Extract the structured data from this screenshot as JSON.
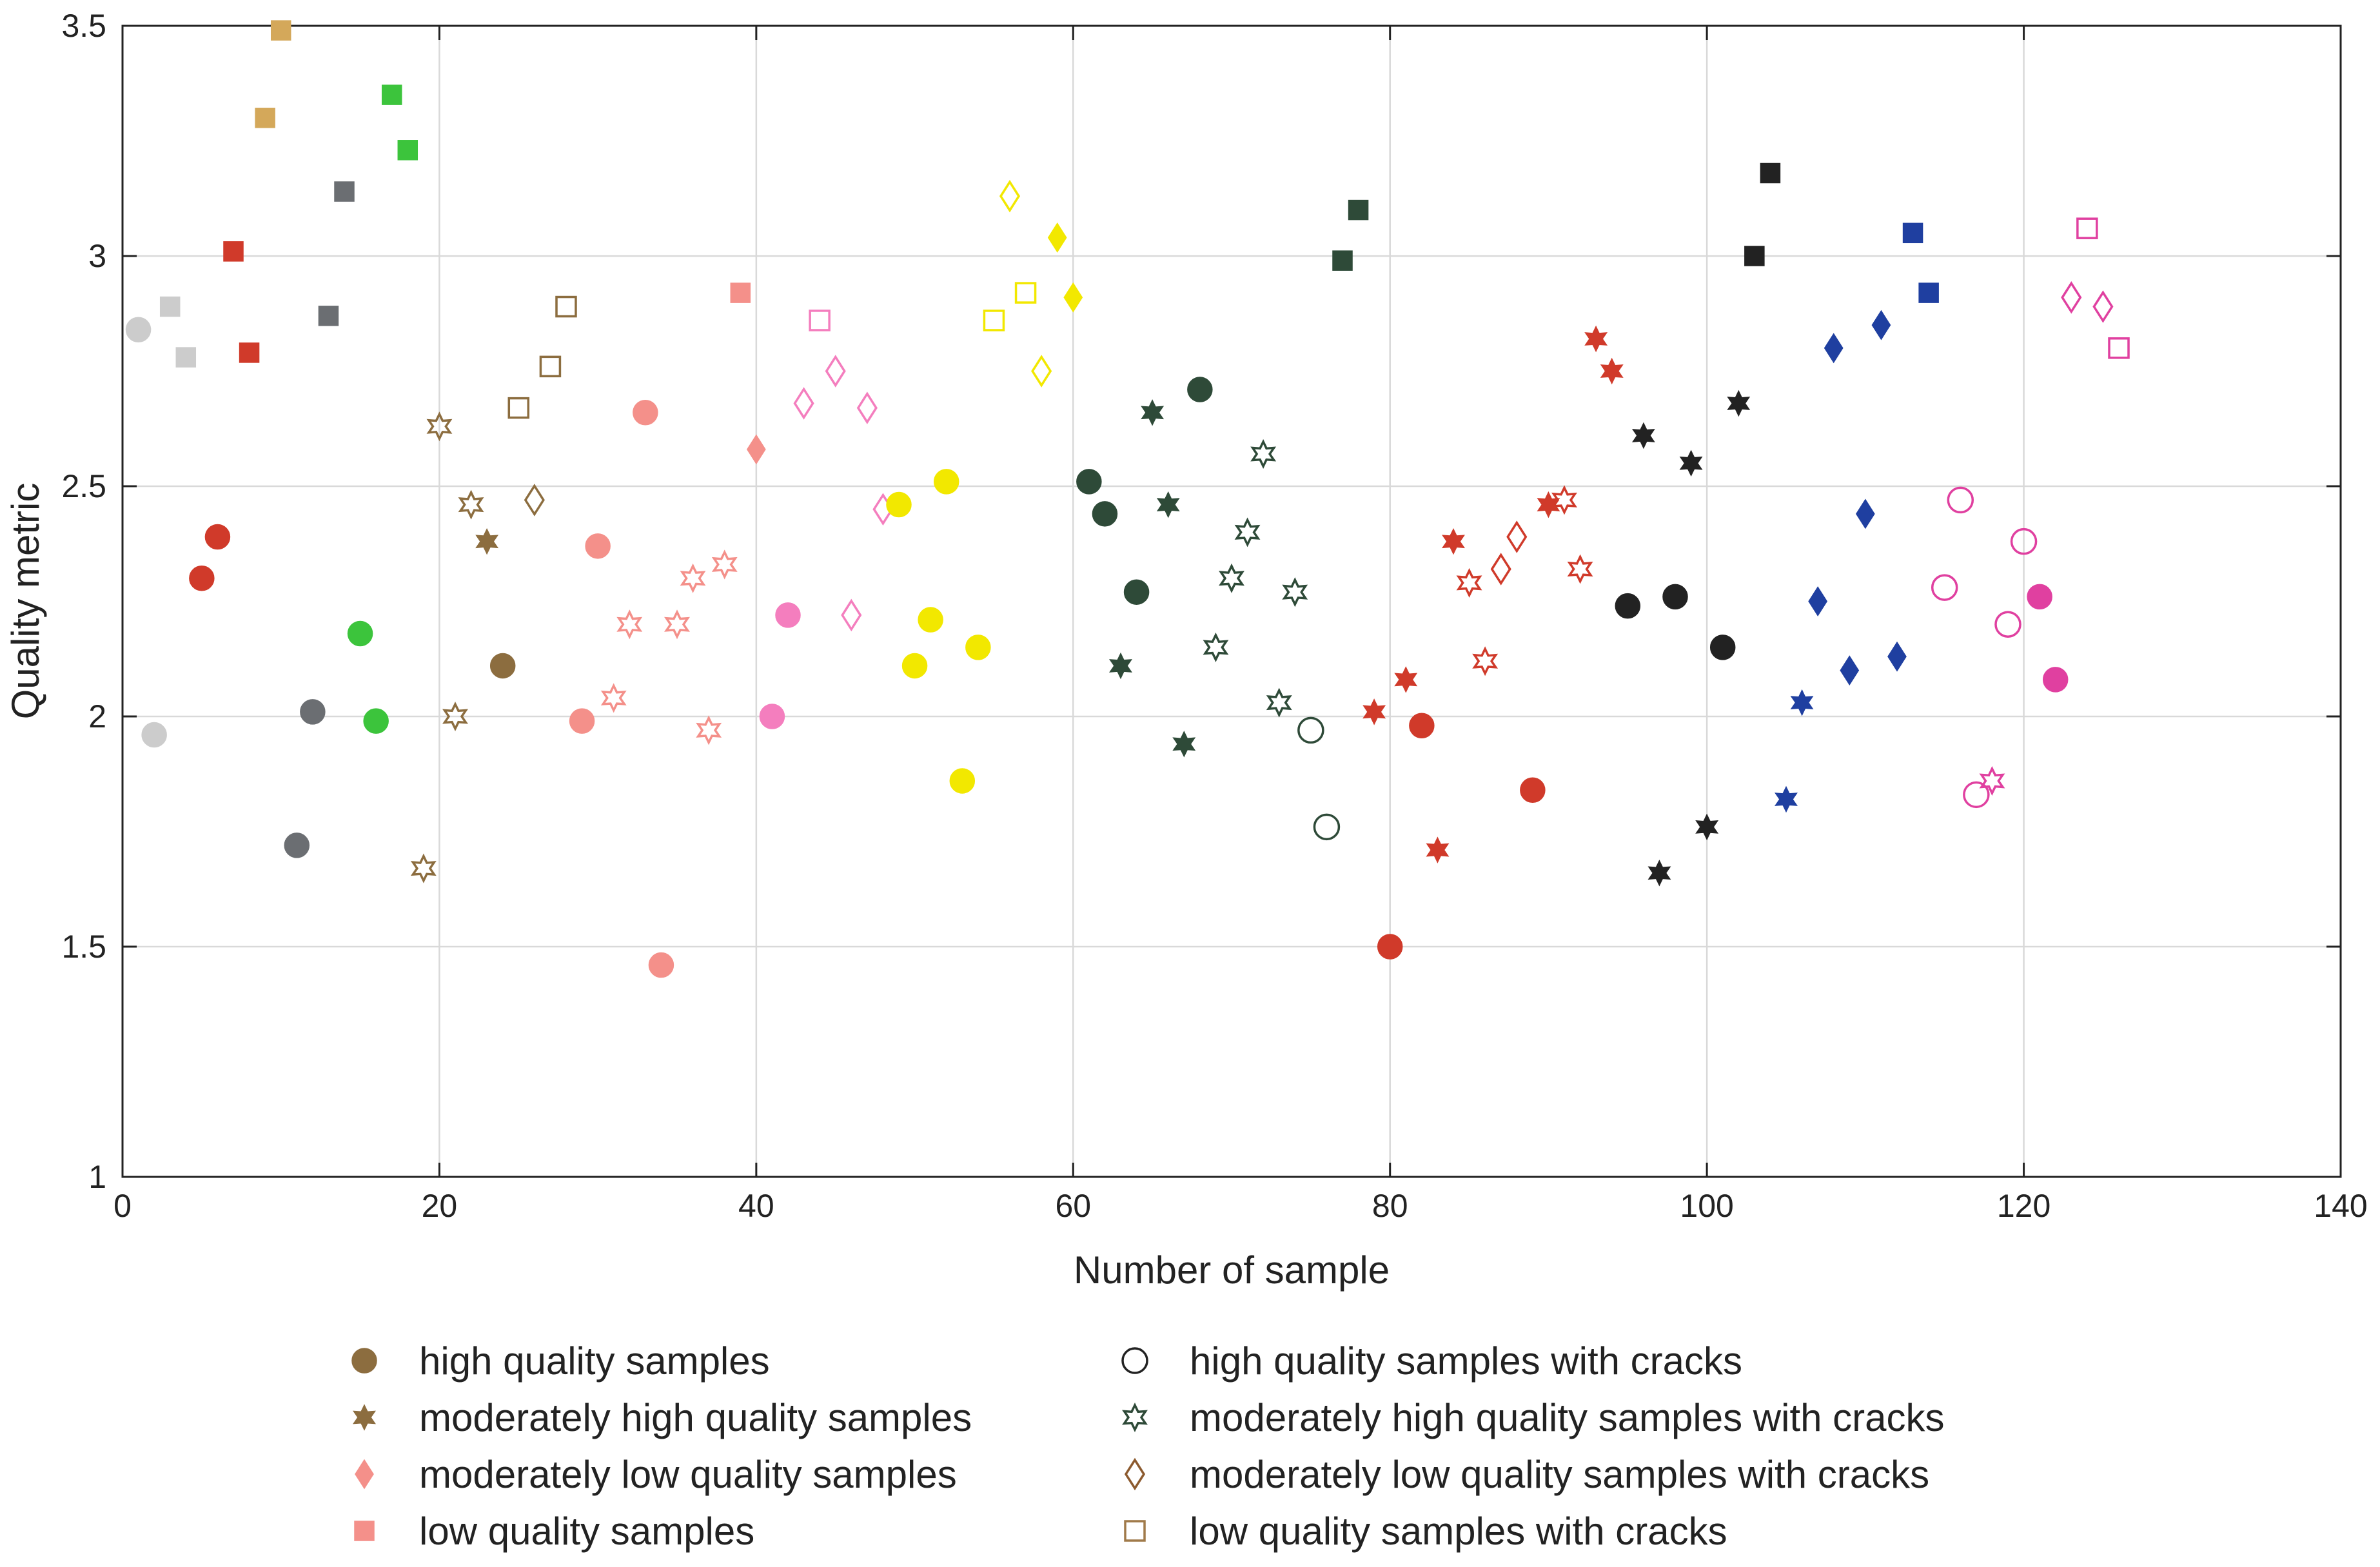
{
  "chart_data": {
    "type": "scatter",
    "title": "",
    "xlabel": "Number of sample",
    "ylabel": "Quality metric",
    "xlim": [
      0,
      140
    ],
    "ylim": [
      1,
      3.5
    ],
    "xticks": [
      "0",
      "20",
      "40",
      "60",
      "80",
      "100",
      "120",
      "140"
    ],
    "yticks": [
      "1",
      "1.5",
      "2",
      "2.5",
      "3",
      "3.5"
    ],
    "grid": true,
    "legend": {
      "placement": "below",
      "entries": [
        {
          "marker": "circle",
          "filled": true,
          "color": "#8C6D3F",
          "label": "high quality samples"
        },
        {
          "marker": "star",
          "filled": true,
          "color": "#8C6D3F",
          "label": "moderately high quality samples"
        },
        {
          "marker": "diamond",
          "filled": true,
          "color": "#F4908A",
          "label": "moderately low quality samples"
        },
        {
          "marker": "square",
          "filled": true,
          "color": "#F4908A",
          "label": "low quality samples"
        },
        {
          "marker": "circle",
          "filled": false,
          "color": "#222222",
          "label": "high quality samples with cracks"
        },
        {
          "marker": "star",
          "filled": false,
          "color": "#2E4A38",
          "label": "moderately high quality samples with cracks"
        },
        {
          "marker": "diamond",
          "filled": false,
          "color": "#8C5A2E",
          "label": "moderately low quality samples with cracks"
        },
        {
          "marker": "square",
          "filled": false,
          "color": "#A07A4A",
          "label": "low quality samples with cracks"
        }
      ]
    },
    "points": [
      {
        "x": 1,
        "y": 2.84,
        "marker": "circle",
        "filled": true,
        "color": "#CCCCCC"
      },
      {
        "x": 2,
        "y": 1.96,
        "marker": "circle",
        "filled": true,
        "color": "#CCCCCC"
      },
      {
        "x": 3,
        "y": 2.89,
        "marker": "square",
        "filled": true,
        "color": "#CCCCCC"
      },
      {
        "x": 4,
        "y": 2.78,
        "marker": "square",
        "filled": true,
        "color": "#CCCCCC"
      },
      {
        "x": 5,
        "y": 2.3,
        "marker": "circle",
        "filled": true,
        "color": "#D03A2A"
      },
      {
        "x": 6,
        "y": 2.39,
        "marker": "circle",
        "filled": true,
        "color": "#D03A2A"
      },
      {
        "x": 7,
        "y": 3.01,
        "marker": "square",
        "filled": true,
        "color": "#D03A2A"
      },
      {
        "x": 8,
        "y": 2.79,
        "marker": "square",
        "filled": true,
        "color": "#D03A2A"
      },
      {
        "x": 9,
        "y": 3.3,
        "marker": "square",
        "filled": true,
        "color": "#D4A85A"
      },
      {
        "x": 10,
        "y": 3.49,
        "marker": "square",
        "filled": true,
        "color": "#D4A85A"
      },
      {
        "x": 11,
        "y": 1.72,
        "marker": "circle",
        "filled": true,
        "color": "#6B6E72"
      },
      {
        "x": 12,
        "y": 2.01,
        "marker": "circle",
        "filled": true,
        "color": "#6B6E72"
      },
      {
        "x": 13,
        "y": 2.87,
        "marker": "square",
        "filled": true,
        "color": "#6B6E72"
      },
      {
        "x": 14,
        "y": 3.14,
        "marker": "square",
        "filled": true,
        "color": "#6B6E72"
      },
      {
        "x": 15,
        "y": 2.18,
        "marker": "circle",
        "filled": true,
        "color": "#3CC43C"
      },
      {
        "x": 16,
        "y": 1.99,
        "marker": "circle",
        "filled": true,
        "color": "#3CC43C"
      },
      {
        "x": 17,
        "y": 3.35,
        "marker": "square",
        "filled": true,
        "color": "#3CC43C"
      },
      {
        "x": 18,
        "y": 3.23,
        "marker": "square",
        "filled": true,
        "color": "#3CC43C"
      },
      {
        "x": 19,
        "y": 1.67,
        "marker": "star",
        "filled": false,
        "color": "#8C6D3F"
      },
      {
        "x": 20,
        "y": 2.63,
        "marker": "star",
        "filled": false,
        "color": "#8C6D3F"
      },
      {
        "x": 21,
        "y": 2.0,
        "marker": "star",
        "filled": false,
        "color": "#8C6D3F"
      },
      {
        "x": 22,
        "y": 2.46,
        "marker": "star",
        "filled": false,
        "color": "#8C6D3F"
      },
      {
        "x": 23,
        "y": 2.38,
        "marker": "star",
        "filled": true,
        "color": "#8C6D3F"
      },
      {
        "x": 24,
        "y": 2.11,
        "marker": "circle",
        "filled": true,
        "color": "#8C6D3F"
      },
      {
        "x": 25,
        "y": 2.67,
        "marker": "square",
        "filled": false,
        "color": "#8C6D3F"
      },
      {
        "x": 26,
        "y": 2.47,
        "marker": "diamond",
        "filled": false,
        "color": "#8C6D3F"
      },
      {
        "x": 27,
        "y": 2.76,
        "marker": "square",
        "filled": false,
        "color": "#8C6D3F"
      },
      {
        "x": 28,
        "y": 2.89,
        "marker": "square",
        "filled": false,
        "color": "#8C6D3F"
      },
      {
        "x": 29,
        "y": 1.99,
        "marker": "circle",
        "filled": true,
        "color": "#F4908A"
      },
      {
        "x": 30,
        "y": 2.37,
        "marker": "circle",
        "filled": true,
        "color": "#F4908A"
      },
      {
        "x": 31,
        "y": 2.04,
        "marker": "star",
        "filled": false,
        "color": "#F4908A"
      },
      {
        "x": 32,
        "y": 2.2,
        "marker": "star",
        "filled": false,
        "color": "#F4908A"
      },
      {
        "x": 33,
        "y": 2.66,
        "marker": "circle",
        "filled": true,
        "color": "#F4908A"
      },
      {
        "x": 34,
        "y": 1.46,
        "marker": "circle",
        "filled": true,
        "color": "#F4908A"
      },
      {
        "x": 35,
        "y": 2.2,
        "marker": "star",
        "filled": false,
        "color": "#F4908A"
      },
      {
        "x": 36,
        "y": 2.3,
        "marker": "star",
        "filled": false,
        "color": "#F4908A"
      },
      {
        "x": 37,
        "y": 1.97,
        "marker": "star",
        "filled": false,
        "color": "#F4908A"
      },
      {
        "x": 38,
        "y": 2.33,
        "marker": "star",
        "filled": false,
        "color": "#F4908A"
      },
      {
        "x": 39,
        "y": 2.92,
        "marker": "square",
        "filled": true,
        "color": "#F4908A"
      },
      {
        "x": 40,
        "y": 2.58,
        "marker": "diamond",
        "filled": true,
        "color": "#F4908A"
      },
      {
        "x": 41,
        "y": 2.0,
        "marker": "circle",
        "filled": true,
        "color": "#F47EBE"
      },
      {
        "x": 42,
        "y": 2.22,
        "marker": "circle",
        "filled": true,
        "color": "#F47EBE"
      },
      {
        "x": 43,
        "y": 2.68,
        "marker": "diamond",
        "filled": false,
        "color": "#F47EBE"
      },
      {
        "x": 44,
        "y": 2.86,
        "marker": "square",
        "filled": false,
        "color": "#F47EBE"
      },
      {
        "x": 45,
        "y": 2.75,
        "marker": "diamond",
        "filled": false,
        "color": "#F47EBE"
      },
      {
        "x": 46,
        "y": 2.22,
        "marker": "diamond",
        "filled": false,
        "color": "#F47EBE"
      },
      {
        "x": 47,
        "y": 2.67,
        "marker": "diamond",
        "filled": false,
        "color": "#F47EBE"
      },
      {
        "x": 48,
        "y": 2.45,
        "marker": "diamond",
        "filled": false,
        "color": "#F47EBE"
      },
      {
        "x": 49,
        "y": 2.46,
        "marker": "circle",
        "filled": true,
        "color": "#F2E800"
      },
      {
        "x": 50,
        "y": 2.11,
        "marker": "circle",
        "filled": true,
        "color": "#F2E800"
      },
      {
        "x": 51,
        "y": 2.21,
        "marker": "circle",
        "filled": true,
        "color": "#F2E800"
      },
      {
        "x": 52,
        "y": 2.51,
        "marker": "circle",
        "filled": true,
        "color": "#F2E800"
      },
      {
        "x": 53,
        "y": 1.86,
        "marker": "circle",
        "filled": true,
        "color": "#F2E800"
      },
      {
        "x": 54,
        "y": 2.15,
        "marker": "circle",
        "filled": true,
        "color": "#F2E800"
      },
      {
        "x": 55,
        "y": 2.86,
        "marker": "square",
        "filled": false,
        "color": "#F2E800"
      },
      {
        "x": 56,
        "y": 3.13,
        "marker": "diamond",
        "filled": false,
        "color": "#F2E800"
      },
      {
        "x": 57,
        "y": 2.92,
        "marker": "square",
        "filled": false,
        "color": "#F2E800"
      },
      {
        "x": 58,
        "y": 2.75,
        "marker": "diamond",
        "filled": false,
        "color": "#F2E800"
      },
      {
        "x": 59,
        "y": 3.04,
        "marker": "diamond",
        "filled": true,
        "color": "#F2E800"
      },
      {
        "x": 60,
        "y": 2.91,
        "marker": "diamond",
        "filled": true,
        "color": "#F2E800"
      },
      {
        "x": 61,
        "y": 2.51,
        "marker": "circle",
        "filled": true,
        "color": "#2E4A38"
      },
      {
        "x": 62,
        "y": 2.44,
        "marker": "circle",
        "filled": true,
        "color": "#2E4A38"
      },
      {
        "x": 63,
        "y": 2.11,
        "marker": "star",
        "filled": true,
        "color": "#2E4A38"
      },
      {
        "x": 64,
        "y": 2.27,
        "marker": "circle",
        "filled": true,
        "color": "#2E4A38"
      },
      {
        "x": 65,
        "y": 2.66,
        "marker": "star",
        "filled": true,
        "color": "#2E4A38"
      },
      {
        "x": 66,
        "y": 2.46,
        "marker": "star",
        "filled": true,
        "color": "#2E4A38"
      },
      {
        "x": 67,
        "y": 1.94,
        "marker": "star",
        "filled": true,
        "color": "#2E4A38"
      },
      {
        "x": 68,
        "y": 2.71,
        "marker": "circle",
        "filled": true,
        "color": "#2E4A38"
      },
      {
        "x": 69,
        "y": 2.15,
        "marker": "star",
        "filled": false,
        "color": "#2E4A38"
      },
      {
        "x": 70,
        "y": 2.3,
        "marker": "star",
        "filled": false,
        "color": "#2E4A38"
      },
      {
        "x": 71,
        "y": 2.4,
        "marker": "star",
        "filled": false,
        "color": "#2E4A38"
      },
      {
        "x": 72,
        "y": 2.57,
        "marker": "star",
        "filled": false,
        "color": "#2E4A38"
      },
      {
        "x": 73,
        "y": 2.03,
        "marker": "star",
        "filled": false,
        "color": "#2E4A38"
      },
      {
        "x": 74,
        "y": 2.27,
        "marker": "star",
        "filled": false,
        "color": "#2E4A38"
      },
      {
        "x": 75,
        "y": 1.97,
        "marker": "circle",
        "filled": false,
        "color": "#2E4A38"
      },
      {
        "x": 76,
        "y": 1.76,
        "marker": "circle",
        "filled": false,
        "color": "#2E4A38"
      },
      {
        "x": 77,
        "y": 2.99,
        "marker": "square",
        "filled": true,
        "color": "#2E4A38"
      },
      {
        "x": 78,
        "y": 3.1,
        "marker": "square",
        "filled": true,
        "color": "#2E4A38"
      },
      {
        "x": 79,
        "y": 2.01,
        "marker": "star",
        "filled": true,
        "color": "#D03A2A"
      },
      {
        "x": 80,
        "y": 1.5,
        "marker": "circle",
        "filled": true,
        "color": "#D03A2A"
      },
      {
        "x": 81,
        "y": 2.08,
        "marker": "star",
        "filled": true,
        "color": "#D03A2A"
      },
      {
        "x": 82,
        "y": 1.98,
        "marker": "circle",
        "filled": true,
        "color": "#D03A2A"
      },
      {
        "x": 83,
        "y": 1.71,
        "marker": "star",
        "filled": true,
        "color": "#D03A2A"
      },
      {
        "x": 84,
        "y": 2.38,
        "marker": "star",
        "filled": true,
        "color": "#D03A2A"
      },
      {
        "x": 85,
        "y": 2.29,
        "marker": "star",
        "filled": false,
        "color": "#D03A2A"
      },
      {
        "x": 86,
        "y": 2.12,
        "marker": "star",
        "filled": false,
        "color": "#D03A2A"
      },
      {
        "x": 87,
        "y": 2.32,
        "marker": "diamond",
        "filled": false,
        "color": "#D03A2A"
      },
      {
        "x": 88,
        "y": 2.39,
        "marker": "diamond",
        "filled": false,
        "color": "#D03A2A"
      },
      {
        "x": 89,
        "y": 1.84,
        "marker": "circle",
        "filled": true,
        "color": "#D03A2A"
      },
      {
        "x": 90,
        "y": 2.46,
        "marker": "star",
        "filled": true,
        "color": "#D03A2A"
      },
      {
        "x": 91,
        "y": 2.47,
        "marker": "star",
        "filled": false,
        "color": "#D03A2A"
      },
      {
        "x": 92,
        "y": 2.32,
        "marker": "star",
        "filled": false,
        "color": "#D03A2A"
      },
      {
        "x": 93,
        "y": 2.82,
        "marker": "star",
        "filled": true,
        "color": "#D03A2A"
      },
      {
        "x": 94,
        "y": 2.75,
        "marker": "star",
        "filled": true,
        "color": "#D03A2A"
      },
      {
        "x": 95,
        "y": 2.24,
        "marker": "circle",
        "filled": true,
        "color": "#222222"
      },
      {
        "x": 96,
        "y": 2.61,
        "marker": "star",
        "filled": true,
        "color": "#222222"
      },
      {
        "x": 97,
        "y": 1.66,
        "marker": "star",
        "filled": true,
        "color": "#222222"
      },
      {
        "x": 98,
        "y": 2.26,
        "marker": "circle",
        "filled": true,
        "color": "#222222"
      },
      {
        "x": 99,
        "y": 2.55,
        "marker": "star",
        "filled": true,
        "color": "#222222"
      },
      {
        "x": 100,
        "y": 1.76,
        "marker": "star",
        "filled": true,
        "color": "#222222"
      },
      {
        "x": 101,
        "y": 2.15,
        "marker": "circle",
        "filled": true,
        "color": "#222222"
      },
      {
        "x": 102,
        "y": 2.68,
        "marker": "star",
        "filled": true,
        "color": "#222222"
      },
      {
        "x": 103,
        "y": 3.0,
        "marker": "square",
        "filled": true,
        "color": "#222222"
      },
      {
        "x": 104,
        "y": 3.18,
        "marker": "square",
        "filled": true,
        "color": "#222222"
      },
      {
        "x": 105,
        "y": 1.82,
        "marker": "star",
        "filled": true,
        "color": "#1F3FA0"
      },
      {
        "x": 106,
        "y": 2.03,
        "marker": "star",
        "filled": true,
        "color": "#1F3FA0"
      },
      {
        "x": 107,
        "y": 2.25,
        "marker": "diamond",
        "filled": true,
        "color": "#1F3FA0"
      },
      {
        "x": 108,
        "y": 2.8,
        "marker": "diamond",
        "filled": true,
        "color": "#1F3FA0"
      },
      {
        "x": 109,
        "y": 2.1,
        "marker": "diamond",
        "filled": true,
        "color": "#1F3FA0"
      },
      {
        "x": 110,
        "y": 2.44,
        "marker": "diamond",
        "filled": true,
        "color": "#1F3FA0"
      },
      {
        "x": 111,
        "y": 2.85,
        "marker": "diamond",
        "filled": true,
        "color": "#1F3FA0"
      },
      {
        "x": 112,
        "y": 2.13,
        "marker": "diamond",
        "filled": true,
        "color": "#1F3FA0"
      },
      {
        "x": 113,
        "y": 3.05,
        "marker": "square",
        "filled": true,
        "color": "#1F3FA0"
      },
      {
        "x": 114,
        "y": 2.92,
        "marker": "square",
        "filled": true,
        "color": "#1F3FA0"
      },
      {
        "x": 115,
        "y": 2.28,
        "marker": "circle",
        "filled": false,
        "color": "#E040A0"
      },
      {
        "x": 116,
        "y": 2.47,
        "marker": "circle",
        "filled": false,
        "color": "#E040A0"
      },
      {
        "x": 117,
        "y": 1.83,
        "marker": "circle",
        "filled": false,
        "color": "#E040A0"
      },
      {
        "x": 118,
        "y": 1.86,
        "marker": "star",
        "filled": false,
        "color": "#E040A0"
      },
      {
        "x": 119,
        "y": 2.2,
        "marker": "circle",
        "filled": false,
        "color": "#E040A0"
      },
      {
        "x": 120,
        "y": 2.38,
        "marker": "circle",
        "filled": false,
        "color": "#E040A0"
      },
      {
        "x": 121,
        "y": 2.26,
        "marker": "circle",
        "filled": true,
        "color": "#E040A0"
      },
      {
        "x": 122,
        "y": 2.08,
        "marker": "circle",
        "filled": true,
        "color": "#E040A0"
      },
      {
        "x": 123,
        "y": 2.91,
        "marker": "diamond",
        "filled": false,
        "color": "#E040A0"
      },
      {
        "x": 124,
        "y": 3.06,
        "marker": "square",
        "filled": false,
        "color": "#E040A0"
      },
      {
        "x": 125,
        "y": 2.89,
        "marker": "diamond",
        "filled": false,
        "color": "#E040A0"
      },
      {
        "x": 126,
        "y": 2.8,
        "marker": "square",
        "filled": false,
        "color": "#E040A0"
      }
    ]
  }
}
